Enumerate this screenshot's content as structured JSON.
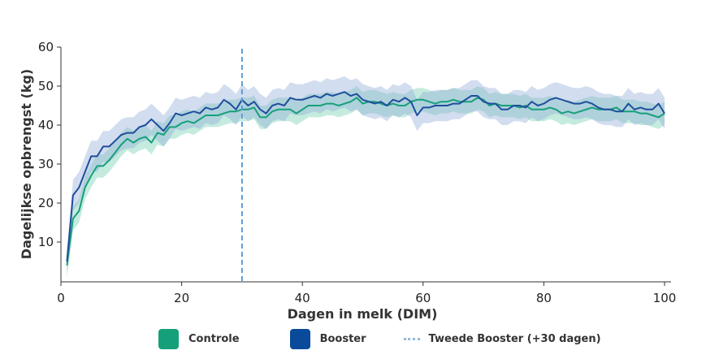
{
  "chart_data": {
    "type": "line",
    "title": "",
    "xlabel": "Dagen in melk (DIM)",
    "ylabel": "Dagelijkse opbrengst (kg)",
    "xlim": [
      0,
      100
    ],
    "ylim": [
      0,
      60
    ],
    "xticks": [
      0,
      20,
      40,
      60,
      80,
      100
    ],
    "yticks": [
      10,
      20,
      30,
      40,
      50,
      60
    ],
    "grid": false,
    "legend_position": "bottom",
    "vline": {
      "x": 30,
      "label": "Tweede Booster (+30 dagen)",
      "style": "dashed",
      "color": "#5b9bd5"
    },
    "x": [
      1,
      2,
      3,
      4,
      5,
      6,
      7,
      8,
      9,
      10,
      11,
      12,
      13,
      14,
      15,
      16,
      17,
      18,
      19,
      20,
      21,
      22,
      23,
      24,
      25,
      26,
      27,
      28,
      29,
      30,
      31,
      32,
      33,
      34,
      35,
      36,
      37,
      38,
      39,
      40,
      41,
      42,
      43,
      44,
      45,
      46,
      47,
      48,
      49,
      50,
      51,
      52,
      53,
      54,
      55,
      56,
      57,
      58,
      59,
      60,
      61,
      62,
      63,
      64,
      65,
      66,
      67,
      68,
      69,
      70,
      71,
      72,
      73,
      74,
      75,
      76,
      77,
      78,
      79,
      80,
      81,
      82,
      83,
      84,
      85,
      86,
      87,
      88,
      89,
      90,
      91,
      92,
      93,
      94,
      95,
      96,
      97,
      98,
      99,
      100
    ],
    "series": [
      {
        "name": "Controle",
        "color": "#16a07a",
        "band_color": "#7fd3b8",
        "values": [
          4,
          16,
          18,
          24,
          27,
          29.5,
          29.5,
          31,
          33,
          35,
          36.5,
          35.5,
          36.5,
          37,
          35.5,
          38,
          37.5,
          39.5,
          39.5,
          40.5,
          41,
          40.5,
          41.5,
          42.5,
          42.5,
          42.5,
          43,
          43.5,
          43.5,
          44,
          44,
          44.5,
          42,
          42,
          43.5,
          44,
          44,
          44,
          43,
          44,
          45,
          45,
          45,
          45.5,
          45.5,
          45,
          45.5,
          46,
          47,
          45.5,
          46,
          46,
          45.5,
          45,
          45.5,
          45,
          45,
          46,
          46.5,
          46.5,
          46,
          45.5,
          46,
          46,
          46.5,
          46,
          46,
          46,
          47,
          46.5,
          45,
          45.5,
          45,
          45,
          45,
          44.5,
          45,
          44,
          44,
          44,
          44.5,
          44,
          43,
          43.5,
          43,
          43.5,
          44,
          44.5,
          44,
          44,
          44,
          44.5,
          43.5,
          43.5,
          43.5,
          43,
          43,
          42.5,
          42,
          43
        ],
        "ci": [
          3,
          3,
          3,
          3,
          3,
          3,
          3,
          3,
          3,
          3,
          3,
          3,
          3,
          3,
          3,
          3,
          3,
          3,
          3,
          3,
          3,
          3,
          3,
          3,
          3,
          3,
          3,
          3,
          3,
          3,
          3,
          3,
          3,
          3,
          3,
          3,
          3,
          3,
          3,
          3,
          3,
          3,
          3,
          3,
          3,
          3,
          3,
          3,
          3,
          3,
          3,
          3,
          3,
          3,
          3,
          3,
          3,
          3,
          3,
          3,
          3,
          3,
          3,
          3,
          3,
          3,
          3,
          3,
          3,
          3,
          3,
          3,
          3,
          3,
          3,
          3,
          3,
          3,
          3,
          3,
          3,
          3,
          3,
          3,
          3,
          3,
          3,
          3,
          3,
          3,
          3,
          3,
          3,
          3,
          3,
          3,
          3,
          3,
          3,
          3
        ]
      },
      {
        "name": "Booster",
        "color": "#1f4e9c",
        "band_color": "#8eaad6",
        "values": [
          5,
          22,
          24,
          28,
          32,
          32,
          34.5,
          34.5,
          36,
          37.5,
          38,
          38,
          39.5,
          40,
          41.5,
          40,
          38.5,
          40.5,
          43,
          42.5,
          43,
          43.5,
          43,
          44.5,
          44,
          44.5,
          46.5,
          45.5,
          44,
          46.5,
          45,
          46,
          44,
          43,
          45,
          45.5,
          45,
          47,
          46.5,
          46.5,
          47,
          47.5,
          47,
          48,
          47.5,
          48,
          48.5,
          47.5,
          48,
          46.5,
          46,
          45.5,
          46,
          45,
          46.5,
          46,
          47,
          46,
          42.5,
          44.5,
          44.5,
          45,
          45,
          45,
          45.5,
          45.5,
          46.5,
          47.5,
          47.5,
          46,
          45.5,
          45.5,
          44,
          44,
          45,
          45,
          44.5,
          46,
          45,
          45.5,
          46.5,
          47,
          46.5,
          46,
          45.5,
          45.5,
          46,
          45.5,
          44.5,
          44,
          44,
          43.5,
          43.5,
          45.5,
          44,
          44.5,
          44,
          44,
          45.5,
          43
        ],
        "ci": [
          3,
          4,
          4,
          4,
          4,
          4,
          4,
          4,
          4,
          4,
          4,
          4,
          4,
          4,
          4,
          4,
          4,
          4,
          4,
          4,
          4,
          4,
          4,
          4,
          4,
          4,
          4,
          4,
          4,
          4,
          4,
          4,
          4,
          4,
          4,
          4,
          4,
          4,
          4,
          4,
          4,
          4,
          4,
          4,
          4,
          4,
          4,
          4,
          4,
          4,
          4,
          4,
          4,
          4,
          4,
          4,
          4,
          4,
          4,
          4,
          4,
          4,
          4,
          4,
          4,
          4,
          4,
          4,
          4,
          4,
          4,
          4,
          4,
          4,
          4,
          4,
          4,
          4,
          4,
          4,
          4,
          4,
          4,
          4,
          4,
          4,
          4,
          4,
          4,
          4,
          4,
          4,
          4,
          4,
          4,
          4,
          4,
          4,
          4,
          4
        ]
      }
    ]
  },
  "legend": {
    "items": [
      {
        "label": "Controle",
        "color": "#16a07a"
      },
      {
        "label": "Booster",
        "color": "#0a4a9a"
      },
      {
        "label": "Tweede Booster (+30 dagen)",
        "color": "#8fbbd8"
      }
    ]
  }
}
